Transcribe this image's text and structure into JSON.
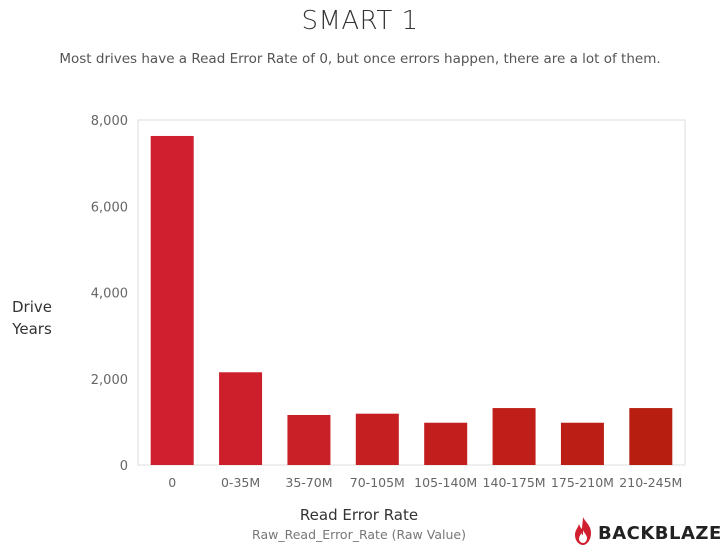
{
  "title": "SMART 1",
  "subtitle": "Most drives have a Read Error Rate of 0, but once errors happen, there are a lot of them.",
  "ylabel_line1": "Drive",
  "ylabel_line2": "Years",
  "xlabel": "Read Error Rate",
  "xsub": "Raw_Read_Error_Rate  (Raw Value)",
  "brand": "BACKBLAZE",
  "colors": {
    "bar_start": "#d01f2f",
    "bar_end": "#b81e10",
    "axis_text": "#666666",
    "frame": "#dddddd"
  },
  "chart_data": {
    "type": "bar",
    "categories": [
      "0",
      "0-35M",
      "35-70M",
      "70-105M",
      "105-140M",
      "140-175M",
      "175-210M",
      "210-245M"
    ],
    "values": [
      7630,
      2150,
      1160,
      1190,
      980,
      1320,
      980,
      1320
    ],
    "ylim": [
      0,
      8000
    ],
    "yticks": [
      0,
      2000,
      4000,
      6000,
      8000
    ],
    "ytick_labels": [
      "0",
      "2,000",
      "4,000",
      "6,000",
      "8,000"
    ],
    "xlabel": "Read Error Rate",
    "ylabel": "Drive Years",
    "grid": false,
    "legend": "none"
  }
}
